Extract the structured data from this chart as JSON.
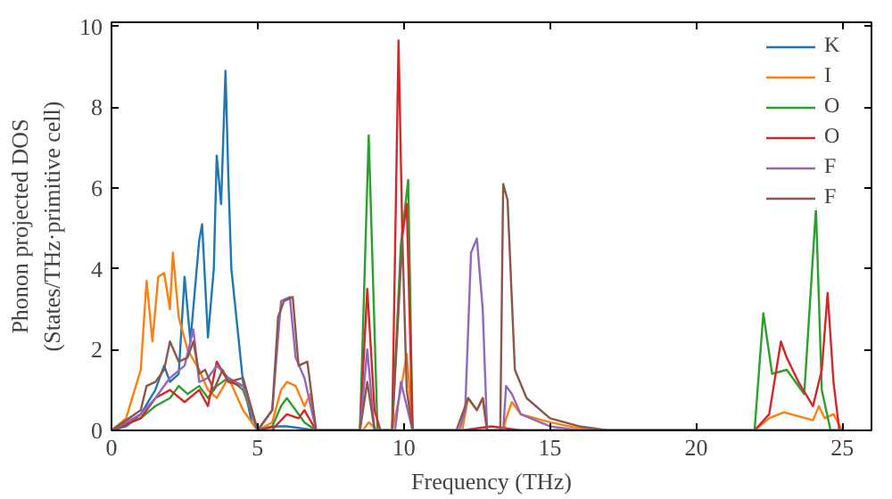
{
  "chart_data": {
    "type": "line",
    "xlabel": "Frequency (THz)",
    "ylabel": "Phonon projected DOS\n(States/THz·primitive cell)",
    "xlim": [
      0,
      26
    ],
    "ylim": [
      0,
      10.1
    ],
    "xticks": [
      0,
      5,
      10,
      15,
      20,
      25
    ],
    "yticks": [
      0,
      2,
      4,
      6,
      8,
      10
    ],
    "grid": false,
    "legend": "top right",
    "marker": "none",
    "line_style": "solid",
    "series": [
      {
        "name": "K",
        "color": "#1f77b4",
        "x": [
          0,
          0.5,
          1,
          1.5,
          1.8,
          2.0,
          2.3,
          2.5,
          2.7,
          3.0,
          3.1,
          3.3,
          3.5,
          3.6,
          3.75,
          3.9,
          4.0,
          4.1,
          4.5,
          4.8,
          5.0,
          5.5,
          5.6,
          6.0,
          6.5,
          7,
          25
        ],
        "values": [
          0,
          0.1,
          0.4,
          1.0,
          1.6,
          1.2,
          1.4,
          3.8,
          2.2,
          4.7,
          5.1,
          2.3,
          4.0,
          6.8,
          5.6,
          8.9,
          6.2,
          4.0,
          1.2,
          0.2,
          0,
          0,
          0.1,
          0.1,
          0.05,
          0,
          0
        ]
      },
      {
        "name": "I",
        "color": "#ff7f0e",
        "x": [
          0,
          0.5,
          1.0,
          1.2,
          1.4,
          1.6,
          1.8,
          2.0,
          2.1,
          2.3,
          2.6,
          3.0,
          3.3,
          3.6,
          4.0,
          4.5,
          5.0,
          5.5,
          5.8,
          6.0,
          6.3,
          6.6,
          6.8,
          7,
          8.6,
          8.8,
          9.1,
          9.6,
          9.9,
          10.1,
          10.3,
          12.0,
          12.2,
          12.5,
          12.7,
          12.85,
          13.4,
          13.5,
          13.7,
          14.0,
          15,
          16,
          17,
          22,
          22.5,
          23,
          24,
          24.2,
          24.4,
          24.7,
          25
        ],
        "values": [
          0,
          0.3,
          1.5,
          3.7,
          2.2,
          3.8,
          3.9,
          3.0,
          4.4,
          2.8,
          2.0,
          1.5,
          1.0,
          0.8,
          1.3,
          0.5,
          0,
          0.2,
          1.0,
          1.2,
          1.1,
          0.6,
          0.9,
          0,
          0,
          0.2,
          0,
          0,
          1.0,
          1.9,
          0,
          0,
          0.8,
          0.5,
          0.8,
          0,
          0,
          0.3,
          0.7,
          0.4,
          0.2,
          0.05,
          0,
          0,
          0.3,
          0.45,
          0.25,
          0.6,
          0.3,
          0.4,
          0
        ]
      },
      {
        "name": "O",
        "color": "#2ca02c",
        "x": [
          0,
          1,
          1.5,
          2,
          2.3,
          2.6,
          3,
          3.3,
          3.6,
          4,
          4.5,
          5,
          5.5,
          5.8,
          6,
          6.3,
          6.6,
          7,
          8.5,
          8.8,
          9.1,
          9.6,
          9.9,
          10.15,
          10.3,
          22,
          22.3,
          22.6,
          23.1,
          23.7,
          24.1,
          24.3,
          24.6,
          25
        ],
        "values": [
          0,
          0.3,
          0.6,
          0.8,
          1.1,
          0.9,
          1.1,
          0.8,
          1.1,
          1.3,
          1.0,
          0,
          0.1,
          0.6,
          0.8,
          0.5,
          0.2,
          0,
          0,
          7.3,
          0,
          0,
          4.6,
          6.2,
          0,
          0,
          2.9,
          1.4,
          1.5,
          0.9,
          5.5,
          1.0,
          0,
          0
        ]
      },
      {
        "name": "O",
        "color": "#d62728",
        "x": [
          0,
          1,
          1.5,
          2,
          2.5,
          3,
          3.3,
          3.6,
          4,
          4.5,
          5,
          5.6,
          6,
          6.4,
          6.6,
          7,
          8.5,
          8.75,
          9.0,
          9.2,
          9.6,
          9.82,
          9.95,
          10.1,
          10.3,
          12,
          13,
          14,
          22,
          22.5,
          22.9,
          23.1,
          23.5,
          24,
          24.3,
          24.5,
          24.7,
          24.9,
          25
        ],
        "values": [
          0,
          0.3,
          0.8,
          1.0,
          0.7,
          1.0,
          0.6,
          1.7,
          1.2,
          1.1,
          0,
          0.1,
          0.4,
          0.3,
          0.5,
          0,
          0,
          3.5,
          0.5,
          0,
          0,
          9.65,
          4.8,
          5.6,
          0,
          0,
          0.1,
          0,
          0,
          0.4,
          2.2,
          1.8,
          1.2,
          0.6,
          1.5,
          3.4,
          1.2,
          0,
          0
        ]
      },
      {
        "name": "F",
        "color": "#9467bd",
        "x": [
          0,
          1,
          1.5,
          2,
          2.5,
          2.8,
          3,
          3.3,
          3.6,
          4,
          4.5,
          5,
          5.5,
          5.8,
          6.1,
          6.3,
          6.6,
          7,
          8.5,
          8.75,
          9,
          9.7,
          9.9,
          10.1,
          10.3,
          11.9,
          12.1,
          12.3,
          12.5,
          12.7,
          12.85,
          13.4,
          13.5,
          13.7,
          14,
          15,
          16,
          25
        ],
        "values": [
          0,
          0.4,
          0.8,
          1.3,
          1.6,
          2.5,
          1.2,
          1.3,
          1.6,
          1.3,
          1.1,
          0,
          0.5,
          3.2,
          3.3,
          1.8,
          1.3,
          0,
          0,
          2.0,
          0,
          0,
          1.2,
          0.6,
          0,
          0,
          0.5,
          4.4,
          4.75,
          3.0,
          0,
          0,
          1.1,
          0.9,
          0.4,
          0.1,
          0,
          0
        ]
      },
      {
        "name": "F",
        "color": "#8c564b",
        "x": [
          0,
          1,
          1.2,
          1.5,
          1.8,
          2,
          2.3,
          2.6,
          2.8,
          3,
          3.2,
          3.5,
          3.8,
          4,
          4.5,
          5,
          5.5,
          5.7,
          5.9,
          6.2,
          6.4,
          6.7,
          7,
          8.5,
          8.75,
          9,
          9.6,
          9.8,
          9.95,
          10.1,
          10.3,
          11.8,
          12.2,
          12.5,
          12.7,
          12.85,
          13.3,
          13.4,
          13.55,
          13.8,
          14.2,
          15,
          16,
          17,
          25
        ],
        "values": [
          0,
          0.5,
          1.1,
          1.2,
          1.5,
          2.2,
          1.7,
          1.8,
          2.2,
          1.4,
          1.5,
          1.0,
          1.5,
          1.2,
          1.3,
          0,
          0.5,
          2.8,
          3.2,
          3.3,
          1.6,
          1.7,
          0,
          0,
          1.2,
          0,
          0,
          2.7,
          4.8,
          1.0,
          0,
          0,
          0.8,
          0.5,
          0.8,
          0,
          0,
          6.1,
          5.7,
          1.5,
          0.8,
          0.3,
          0.1,
          0,
          0
        ]
      }
    ]
  }
}
